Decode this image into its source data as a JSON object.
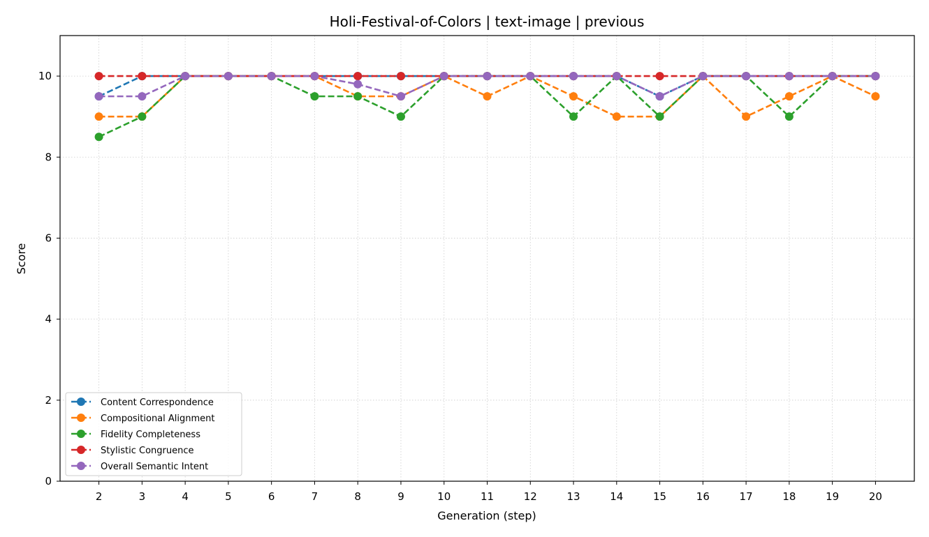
{
  "chart_data": {
    "type": "line",
    "title": "Holi-Festival-of-Colors | text-image | previous",
    "xlabel": "Generation (step)",
    "ylabel": "Score",
    "x": [
      2,
      3,
      4,
      5,
      6,
      7,
      8,
      9,
      10,
      11,
      12,
      13,
      14,
      15,
      16,
      17,
      18,
      19,
      20
    ],
    "xlim": [
      1.1,
      20.9
    ],
    "ylim": [
      0,
      11
    ],
    "yticks": [
      0,
      2,
      4,
      6,
      8,
      10
    ],
    "grid": true,
    "legend_position": "lower-left",
    "series": [
      {
        "name": "Content Correspondence",
        "color": "#1f77b4",
        "line_style": "dashed",
        "values": [
          9.5,
          10,
          10,
          10,
          10,
          10,
          10,
          10,
          10,
          10,
          10,
          10,
          10,
          9.5,
          10,
          10,
          10,
          10,
          10
        ]
      },
      {
        "name": "Compositional Alignment",
        "color": "#ff7f0e",
        "line_style": "dashed",
        "values": [
          9,
          9,
          10,
          10,
          10,
          10,
          9.5,
          9.5,
          10,
          9.5,
          10,
          9.5,
          9,
          9,
          10,
          9,
          9.5,
          10,
          9.5
        ]
      },
      {
        "name": "Fidelity Completeness",
        "color": "#2ca02c",
        "line_style": "dashed",
        "values": [
          8.5,
          9,
          10,
          10,
          10,
          9.5,
          9.5,
          9,
          10,
          10,
          10,
          9,
          10,
          9,
          10,
          10,
          9,
          10,
          10
        ]
      },
      {
        "name": "Stylistic Congruence",
        "color": "#d62728",
        "line_style": "dashed",
        "values": [
          10,
          10,
          10,
          10,
          10,
          10,
          10,
          10,
          10,
          10,
          10,
          10,
          10,
          10,
          10,
          10,
          10,
          10,
          10
        ]
      },
      {
        "name": "Overall Semantic Intent",
        "color": "#9467bd",
        "line_style": "dashed",
        "values": [
          9.5,
          9.5,
          10,
          10,
          10,
          10,
          9.8,
          9.5,
          10,
          10,
          10,
          10,
          10,
          9.5,
          10,
          10,
          10,
          10,
          10
        ]
      }
    ]
  }
}
